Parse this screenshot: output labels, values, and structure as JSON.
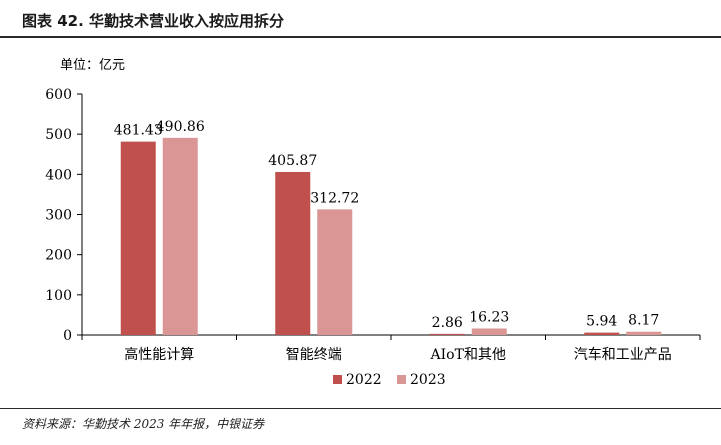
{
  "header": {
    "title": "图表 42. 华勤技术营业收入按应用拆分"
  },
  "footer": {
    "source": "资料来源：华勤技术 2023 年年报，中银证券"
  },
  "colors": {
    "series_2022": "#c0504d",
    "series_2023": "#d99694"
  },
  "chart_data": {
    "type": "bar",
    "unit_label": "单位：亿元",
    "categories": [
      "高性能计算",
      "智能终端",
      "AIoT和其他",
      "汽车和工业产品"
    ],
    "series": [
      {
        "name": "2022",
        "values": [
          481.43,
          405.87,
          2.86,
          5.94
        ]
      },
      {
        "name": "2023",
        "values": [
          490.86,
          312.72,
          16.23,
          8.17
        ]
      }
    ],
    "data_labels": [
      [
        "481.43",
        "405.87",
        "2.86",
        "5.94"
      ],
      [
        "490.86",
        "312.72",
        "16.23",
        "8.17"
      ]
    ],
    "ylim": [
      0,
      600
    ],
    "yticks": [
      0,
      100,
      200,
      300,
      400,
      500,
      600
    ],
    "grid": false,
    "legend": "bottom-center"
  }
}
